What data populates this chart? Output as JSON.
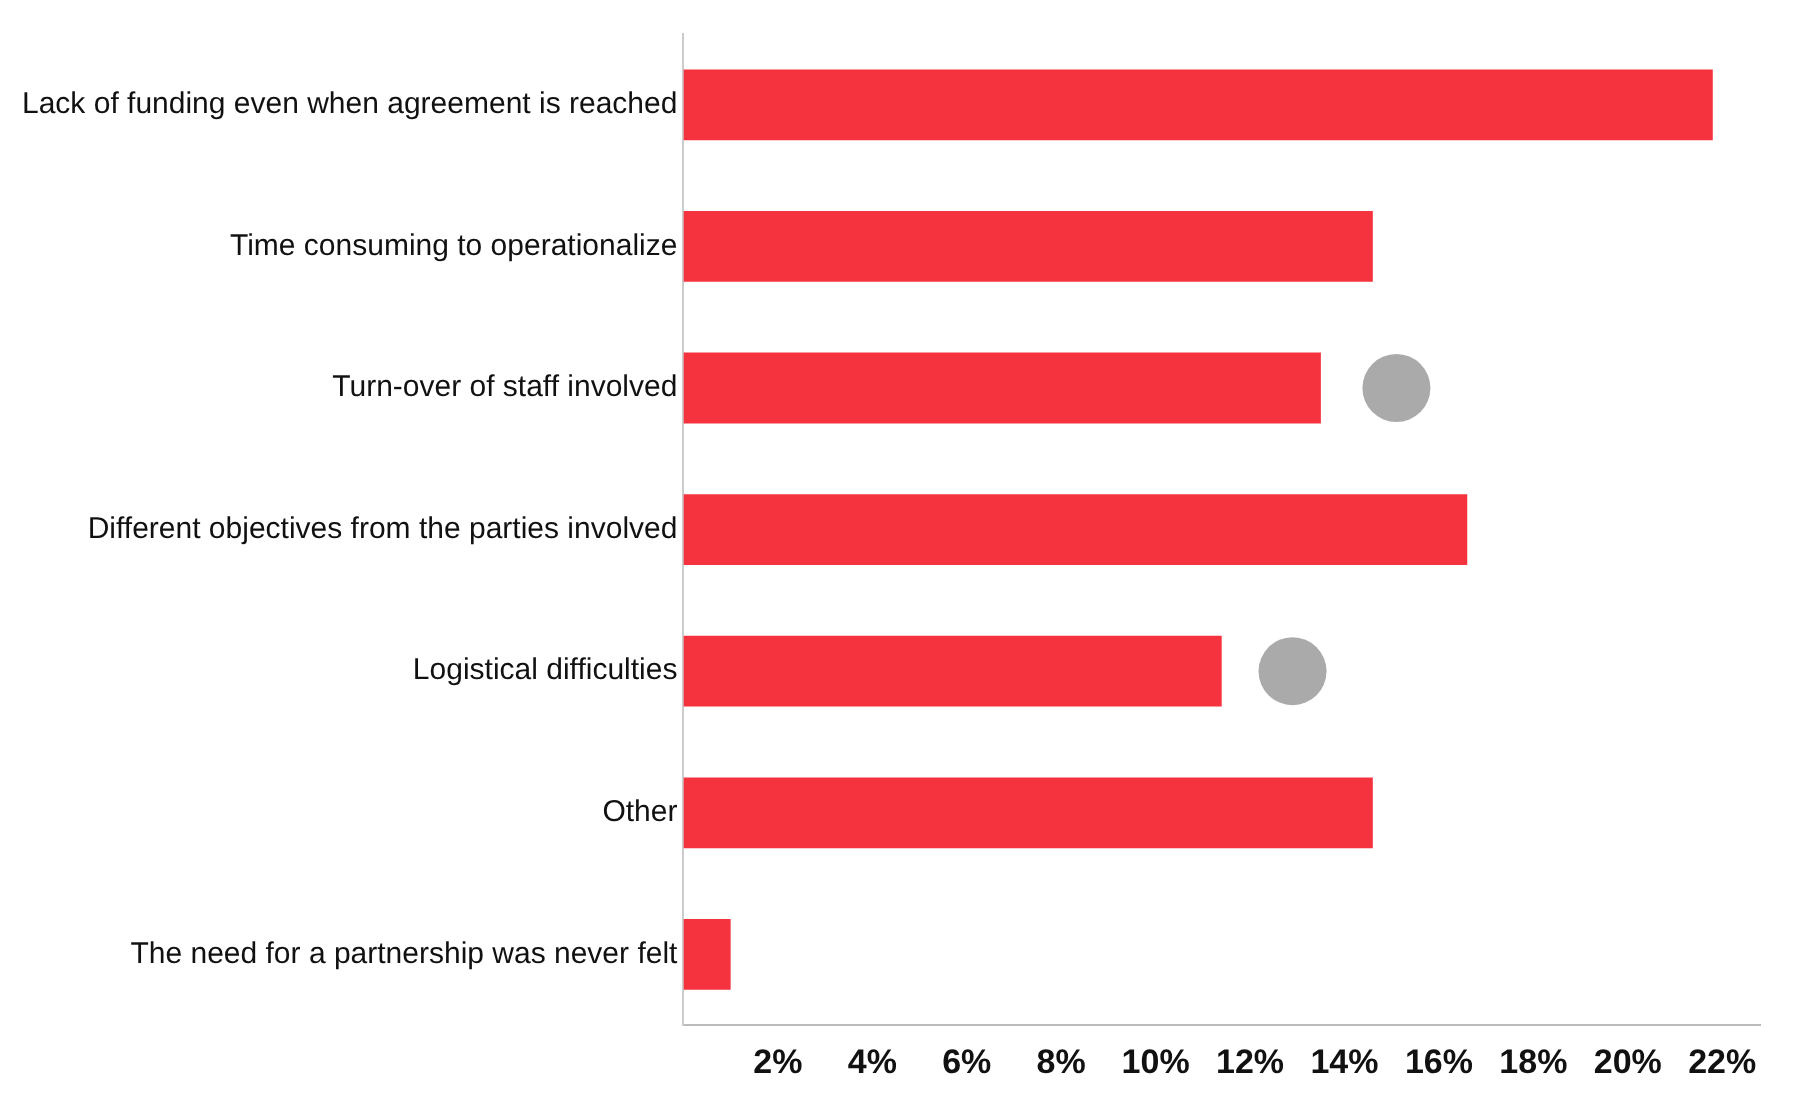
{
  "chart_data": {
    "type": "bar",
    "orientation": "horizontal",
    "categories": [
      "Lack of funding even when agreement is reached",
      "Time consuming to operationalize",
      "Turn-over of staff involved",
      "Different objectives from the parties involved",
      "Logistical difficulties",
      "Other",
      "The need for a partnership was never felt"
    ],
    "series": [
      {
        "type": "bar",
        "color": "#f5333f",
        "values": [
          21.8,
          14.6,
          13.5,
          16.6,
          11.4,
          14.6,
          1.0
        ]
      },
      {
        "type": "scatter",
        "color": "#aaaaaa",
        "values": [
          null,
          null,
          15.1,
          null,
          12.9,
          null,
          null
        ]
      }
    ],
    "xlim": [
      0,
      22.8
    ],
    "xticks": [
      {
        "value": 0,
        "label": null
      },
      {
        "value": 2,
        "label": "2%"
      },
      {
        "value": 4,
        "label": "4%"
      },
      {
        "value": 6,
        "label": "6%"
      },
      {
        "value": 8,
        "label": "8%"
      },
      {
        "value": 10,
        "label": "10%"
      },
      {
        "value": 12,
        "label": "12%"
      },
      {
        "value": 14,
        "label": "14%"
      },
      {
        "value": 16,
        "label": "16%"
      },
      {
        "value": 18,
        "label": "18%"
      },
      {
        "value": 20,
        "label": "20%"
      },
      {
        "value": 22,
        "label": "22%"
      }
    ],
    "grid": false,
    "legend": false,
    "marker": "circle"
  }
}
